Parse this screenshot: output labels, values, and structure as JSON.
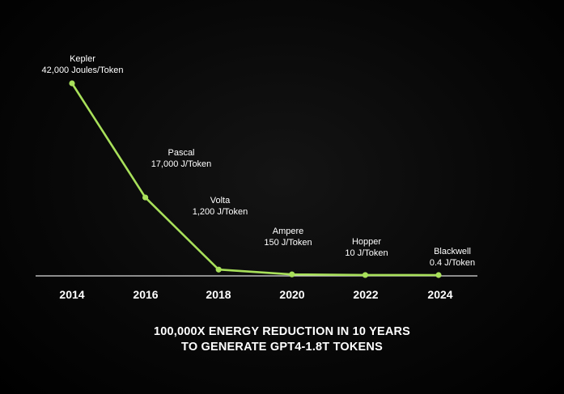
{
  "chart_data": {
    "type": "line",
    "x": [
      2014,
      2016,
      2018,
      2020,
      2022,
      2024
    ],
    "values": [
      42000,
      17000,
      1200,
      150,
      10,
      0.4
    ],
    "unit": "J/Token",
    "point_labels": [
      {
        "name": "Kepler",
        "value_text": "42,000 Joules/Token"
      },
      {
        "name": "Pascal",
        "value_text": "17,000 J/Token"
      },
      {
        "name": "Volta",
        "value_text": "1,200 J/Token"
      },
      {
        "name": "Ampere",
        "value_text": "150 J/Token"
      },
      {
        "name": "Hopper",
        "value_text": "10 J/Token"
      },
      {
        "name": "Blackwell",
        "value_text": "0.4 J/Token"
      }
    ],
    "tick_labels": [
      "2014",
      "2016",
      "2018",
      "2020",
      "2022",
      "2024"
    ],
    "ylim": [
      0,
      42000
    ],
    "grid": false,
    "line_color": "#a8e05a",
    "axis_color": "#dcdcdc",
    "annotation_lines": [
      "100,000X ENERGY REDUCTION IN 10 YEARS",
      "TO GENERATE GPT4-1.8T TOKENS"
    ]
  }
}
